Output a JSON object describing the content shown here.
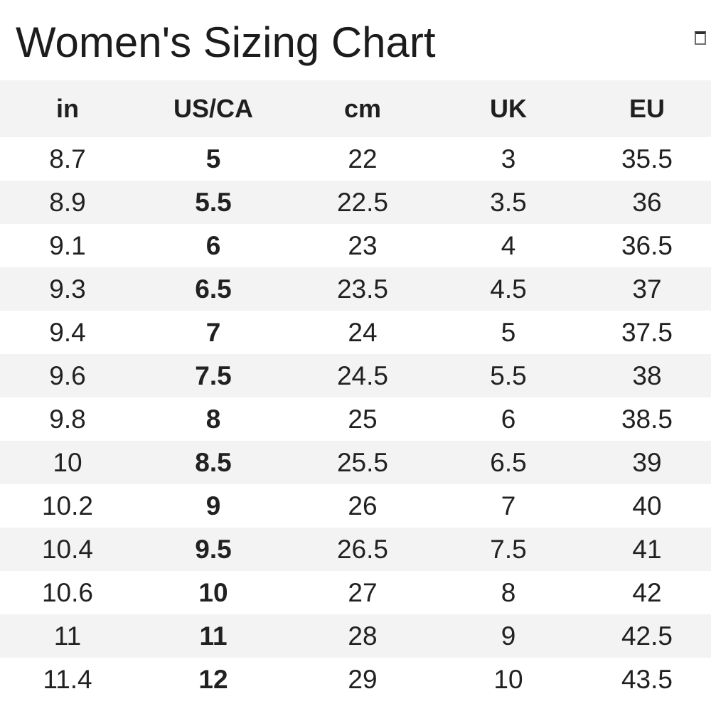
{
  "title": "Women's Sizing Chart",
  "corner_icon": "box-glyph",
  "colors": {
    "background": "#ffffff",
    "stripe": "#f3f3f3",
    "text": "#212121",
    "title_text": "#1c1c1c"
  },
  "table": {
    "columns": [
      "in",
      "US/CA",
      "cm",
      "UK",
      "EU"
    ],
    "bold_column": "US/CA",
    "bold_column_index": 1,
    "column_widths_percent": [
      19,
      22,
      20,
      21,
      18
    ],
    "rows": [
      [
        "8.7",
        "5",
        "22",
        "3",
        "35.5"
      ],
      [
        "8.9",
        "5.5",
        "22.5",
        "3.5",
        "36"
      ],
      [
        "9.1",
        "6",
        "23",
        "4",
        "36.5"
      ],
      [
        "9.3",
        "6.5",
        "23.5",
        "4.5",
        "37"
      ],
      [
        "9.4",
        "7",
        "24",
        "5",
        "37.5"
      ],
      [
        "9.6",
        "7.5",
        "24.5",
        "5.5",
        "38"
      ],
      [
        "9.8",
        "8",
        "25",
        "6",
        "38.5"
      ],
      [
        "10",
        "8.5",
        "25.5",
        "6.5",
        "39"
      ],
      [
        "10.2",
        "9",
        "26",
        "7",
        "40"
      ],
      [
        "10.4",
        "9.5",
        "26.5",
        "7.5",
        "41"
      ],
      [
        "10.6",
        "10",
        "27",
        "8",
        "42"
      ],
      [
        "11",
        "11",
        "28",
        "9",
        "42.5"
      ],
      [
        "11.4",
        "12",
        "29",
        "10",
        "43.5"
      ]
    ]
  }
}
